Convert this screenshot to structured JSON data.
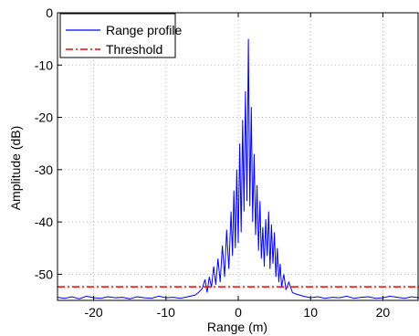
{
  "chart_data": {
    "type": "line",
    "xlabel": "Range (m)",
    "ylabel": "Amplitude (dB)",
    "xlim": [
      -25,
      25
    ],
    "ylim": [
      -55,
      0
    ],
    "xticks": [
      -20,
      -10,
      0,
      10,
      20
    ],
    "yticks": [
      0,
      -10,
      -20,
      -30,
      -40,
      -50
    ],
    "xtick_labels": [
      "-20",
      "-10",
      "0",
      "10",
      "20"
    ],
    "ytick_labels": [
      "0",
      "-10",
      "-20",
      "-30",
      "-40",
      "-50"
    ],
    "grid": true,
    "legend_position": "top-left",
    "series": [
      {
        "name": "Range profile",
        "color": "#0000ff",
        "style": "solid",
        "x": [
          -25,
          -24,
          -23,
          -22,
          -21,
          -20,
          -19,
          -18,
          -17,
          -16,
          -15,
          -14,
          -13,
          -12,
          -11,
          -10,
          -9,
          -8,
          -7,
          -6,
          -5.5,
          -5,
          -4.6,
          -4.3,
          -4,
          -3.7,
          -3.4,
          -3.1,
          -2.8,
          -2.5,
          -2.2,
          -1.9,
          -1.6,
          -1.3,
          -1.0,
          -0.8,
          -0.6,
          -0.4,
          -0.2,
          0,
          0.2,
          0.4,
          0.6,
          0.8,
          1.0,
          1.2,
          1.4,
          1.6,
          1.8,
          2.0,
          2.2,
          2.4,
          2.6,
          2.8,
          3.0,
          3.2,
          3.4,
          3.6,
          3.8,
          4.0,
          4.2,
          4.4,
          4.6,
          4.8,
          5.0,
          5.2,
          5.4,
          5.6,
          5.8,
          6.0,
          6.3,
          6.6,
          7.0,
          7.5,
          8,
          9,
          10,
          11,
          12,
          13,
          14,
          15,
          16,
          17,
          18,
          19,
          20,
          21,
          22,
          23,
          24,
          25
        ],
        "y": [
          -54.4,
          -54.6,
          -54.3,
          -54.7,
          -54.2,
          -54.5,
          -54.6,
          -54.3,
          -54.5,
          -54.4,
          -54.7,
          -54.3,
          -54.5,
          -54.6,
          -54.2,
          -54.5,
          -54.4,
          -54.6,
          -54.3,
          -54.0,
          -53.5,
          -52.8,
          -51.0,
          -53.5,
          -50.5,
          -52.5,
          -48.5,
          -52.0,
          -47.0,
          -51.5,
          -44.5,
          -50.5,
          -41.5,
          -49.0,
          -38.0,
          -46.5,
          -34.0,
          -45.0,
          -30.0,
          -44.0,
          -25.0,
          -42.0,
          -20.5,
          -38.0,
          -15.0,
          -36.0,
          -5.0,
          -37.0,
          -18.0,
          -40.0,
          -27.0,
          -42.5,
          -33.0,
          -45.5,
          -36.0,
          -47.0,
          -41.0,
          -48.5,
          -39.5,
          -46.5,
          -38.0,
          -49.0,
          -40.5,
          -48.0,
          -42.0,
          -50.5,
          -45.0,
          -51.5,
          -48.0,
          -52.5,
          -50.0,
          -53.0,
          -51.5,
          -53.5,
          -53.8,
          -54.2,
          -54.5,
          -54.3,
          -54.6,
          -54.4,
          -54.5,
          -54.2,
          -54.6,
          -54.4,
          -54.3,
          -54.6,
          -54.5,
          -54.2,
          -54.4,
          -54.6,
          -54.3,
          -54.5
        ]
      },
      {
        "name": "Threshold",
        "color": "#ff0000",
        "style": "dash-dot",
        "x": [
          -25,
          25
        ],
        "y": [
          -52.4,
          -52.4
        ]
      }
    ]
  }
}
